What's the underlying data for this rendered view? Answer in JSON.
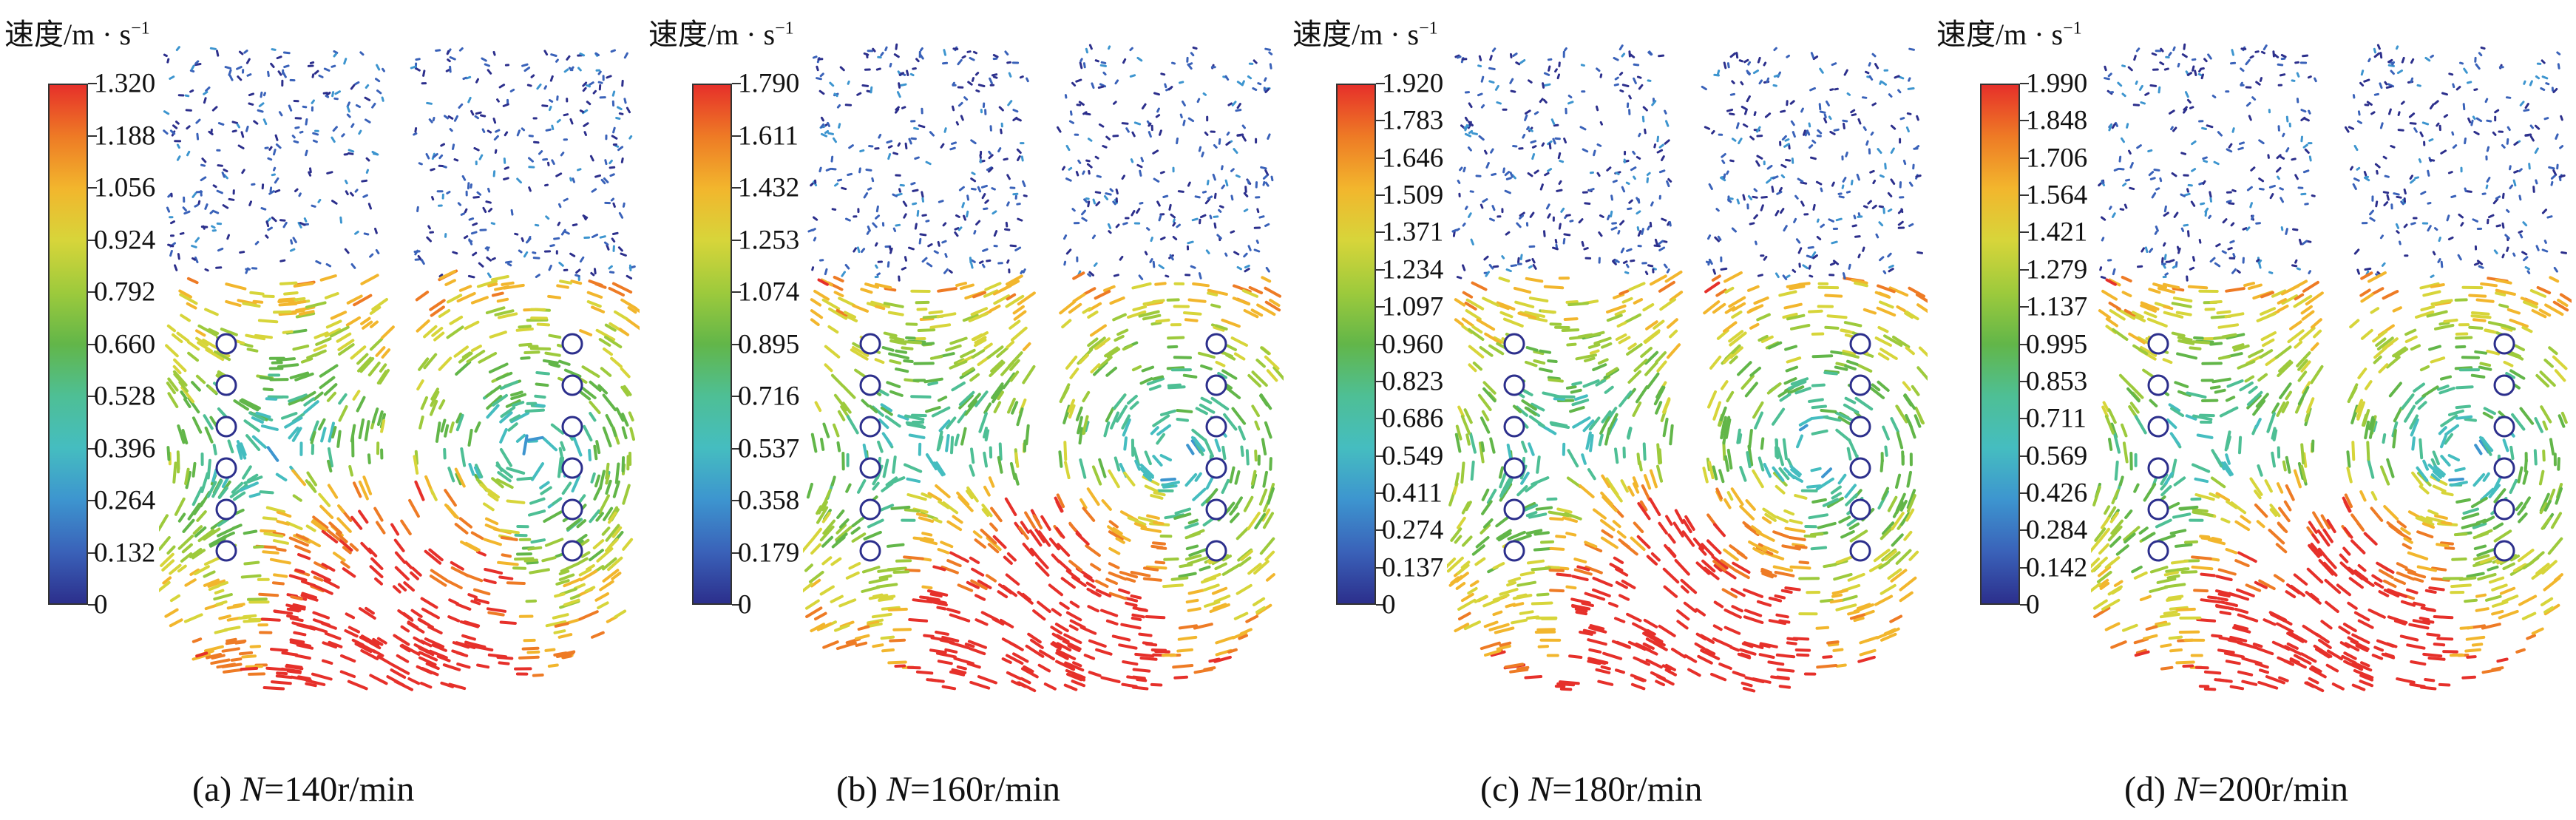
{
  "unit_label_text": "速度/m · s",
  "unit_label_exponent": "−1",
  "panels": [
    {
      "ticks": [
        "1.320",
        "1.188",
        "1.056",
        "0.924",
        "0.792",
        "0.660",
        "0.528",
        "0.396",
        "0.264",
        "0.132",
        "0"
      ],
      "caption_prefix": "(a) ",
      "caption_var": "N",
      "caption_value": "=140r/min"
    },
    {
      "ticks": [
        "1.790",
        "1.611",
        "1.432",
        "1.253",
        "1.074",
        "0.895",
        "0.716",
        "0.537",
        "0.358",
        "0.179",
        "0"
      ],
      "caption_prefix": "(b) ",
      "caption_var": "N",
      "caption_value": "=160r/min"
    },
    {
      "ticks": [
        "1.920",
        "1.783",
        "1.646",
        "1.509",
        "1.371",
        "1.234",
        "1.097",
        "0.960",
        "0.823",
        "0.686",
        "0.549",
        "0.411",
        "0.274",
        "0.137",
        "0"
      ],
      "caption_prefix": "(c) ",
      "caption_var": "N",
      "caption_value": "=180r/min"
    },
    {
      "ticks": [
        "1.990",
        "1.848",
        "1.706",
        "1.564",
        "1.421",
        "1.279",
        "1.137",
        "0.995",
        "0.853",
        "0.711",
        "0.569",
        "0.426",
        "0.284",
        "0.142",
        "0"
      ],
      "caption_prefix": "(d) ",
      "caption_var": "N",
      "caption_value": "=200r/min"
    }
  ]
}
